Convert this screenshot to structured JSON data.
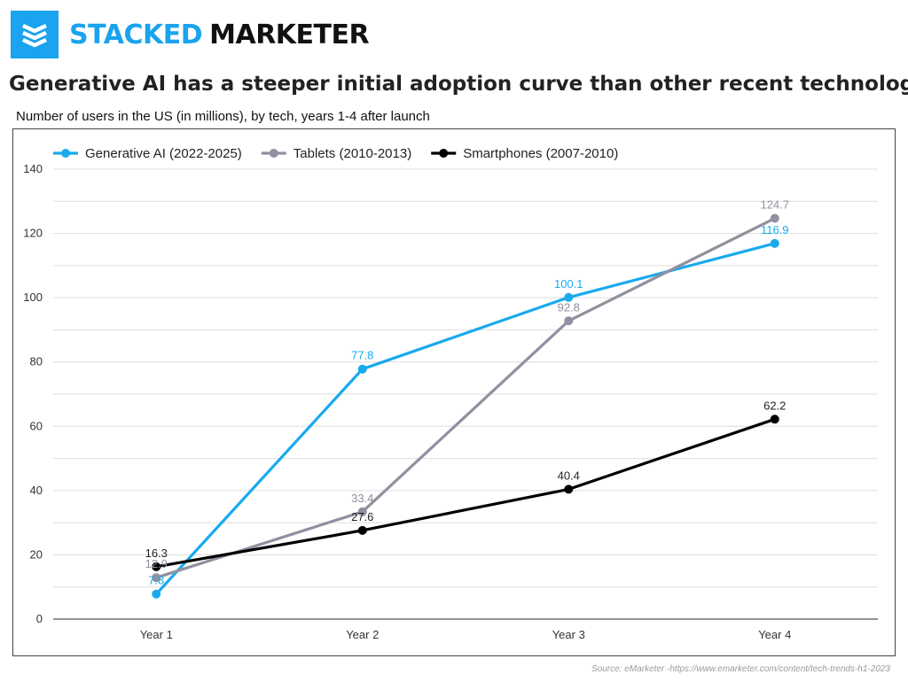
{
  "brand": {
    "word1": "STACKED",
    "word2": "MARKETER",
    "icon": "stacked-layers-icon",
    "color": "#1aa3ee"
  },
  "source": "Source: eMarketer -https://www.emarketer.com/content/tech-trends-h1-2023",
  "chart_data": {
    "type": "line",
    "title": "Generative AI has a steeper initial adoption curve than other recent technologies",
    "subtitle": "Number of users in the US (in millions), by tech, years 1-4 after launch",
    "categories": [
      "Year 1",
      "Year 2",
      "Year 3",
      "Year 4"
    ],
    "ylim": [
      0,
      140
    ],
    "yticks": [
      0,
      20,
      40,
      60,
      80,
      100,
      120,
      140
    ],
    "grid": true,
    "legend": "top-left",
    "series": [
      {
        "name": "Generative AI (2022-2025)",
        "color": "#19aaee",
        "values": [
          7.8,
          77.8,
          100.1,
          116.9
        ],
        "labels": [
          "7.8",
          "77.8",
          "100.1",
          "116.9"
        ]
      },
      {
        "name": "Tablets (2010-2013)",
        "color": "#9090a0",
        "values": [
          12.9,
          33.4,
          92.8,
          124.7
        ],
        "labels": [
          "12.9",
          "33.4",
          "92.8",
          "124.7"
        ]
      },
      {
        "name": "Smartphones (2007-2010)",
        "color": "#000000",
        "values": [
          16.3,
          27.6,
          40.4,
          62.2
        ],
        "labels": [
          "16.3",
          "27.6",
          "40.4",
          "62.2"
        ]
      }
    ]
  }
}
